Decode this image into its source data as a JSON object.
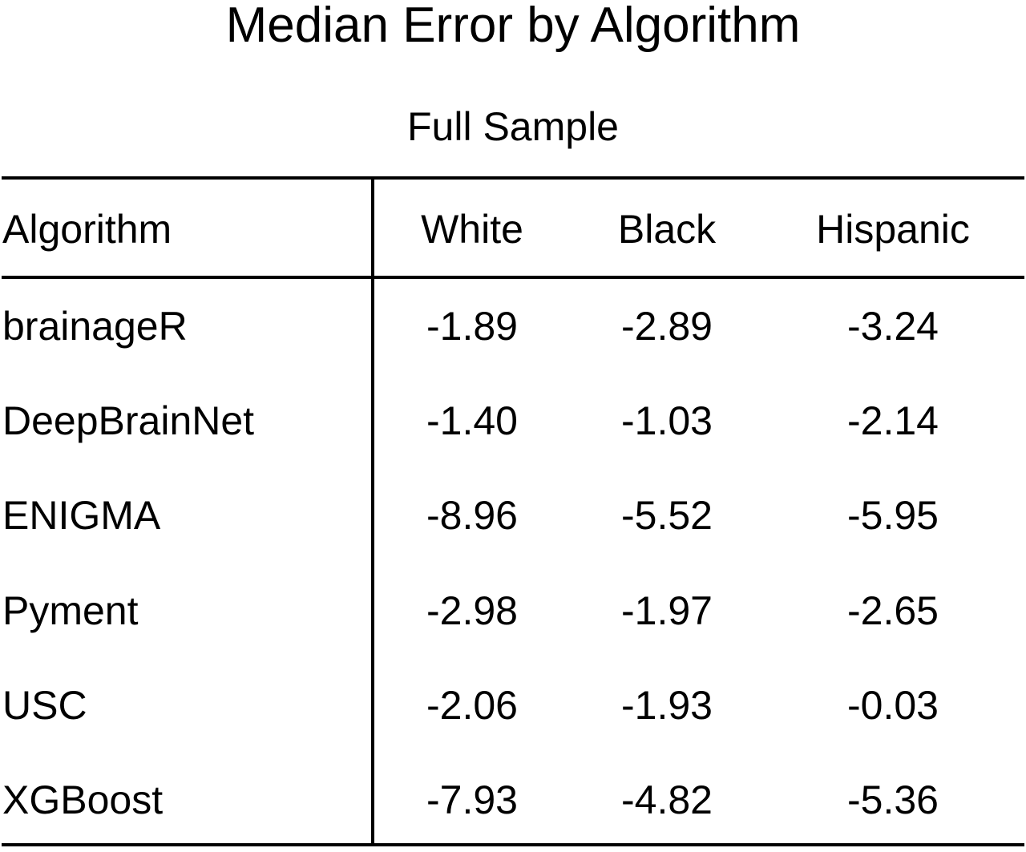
{
  "chart_data": {
    "type": "table",
    "title": "Median Error by Algorithm",
    "subtitle": "Full Sample",
    "columns": [
      "Algorithm",
      "White",
      "Black",
      "Hispanic"
    ],
    "rows": [
      {
        "algorithm": "brainageR",
        "values": [
          "-1.89",
          "-2.89",
          "-3.24"
        ]
      },
      {
        "algorithm": "DeepBrainNet",
        "values": [
          "-1.40",
          "-1.03",
          "-2.14"
        ]
      },
      {
        "algorithm": "ENIGMA",
        "values": [
          "-8.96",
          "-5.52",
          "-5.95"
        ]
      },
      {
        "algorithm": "Pyment",
        "values": [
          "-2.98",
          "-1.97",
          "-2.65"
        ]
      },
      {
        "algorithm": "USC",
        "values": [
          "-2.06",
          "-1.93",
          "-0.03"
        ]
      },
      {
        "algorithm": "XGBoost",
        "values": [
          "-7.93",
          "-4.82",
          "-5.36"
        ]
      }
    ]
  }
}
